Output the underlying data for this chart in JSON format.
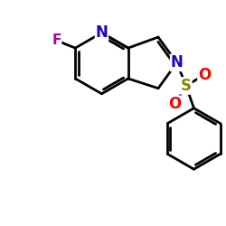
{
  "bg_color": "#ffffff",
  "atom_colors": {
    "F": "#aa00aa",
    "N": "#2200cc",
    "S": "#888800",
    "O": "#ff0000",
    "C": "#000000"
  },
  "bond_color": "#000000",
  "bond_width": 2.0,
  "font_size_atoms": 11,
  "fig_size": [
    2.5,
    2.5
  ],
  "dpi": 100,
  "xlim": [
    0,
    10
  ],
  "ylim": [
    0,
    10
  ]
}
